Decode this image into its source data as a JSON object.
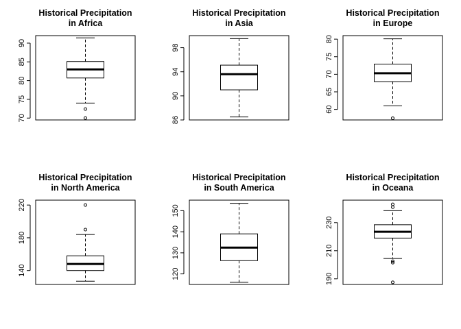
{
  "chart_data": [
    {
      "type": "boxplot",
      "title": [
        "Historical Precipitation",
        "in Africa"
      ],
      "xlabel": "",
      "ylabel": "",
      "ylim": [
        69.5,
        92
      ],
      "yticks": [
        70,
        75,
        80,
        85,
        90
      ],
      "box": {
        "lower_whisker": 74,
        "q1": 80.7,
        "median": 83,
        "q3": 85.1,
        "upper_whisker": 91.4
      },
      "outliers": [
        72.4,
        70
      ]
    },
    {
      "type": "boxplot",
      "title": [
        "Historical Precipitation",
        "in Asia"
      ],
      "xlabel": "",
      "ylabel": "",
      "ylim": [
        86,
        100
      ],
      "yticks": [
        86,
        90,
        94,
        98
      ],
      "box": {
        "lower_whisker": 86.5,
        "q1": 91,
        "median": 93.6,
        "q3": 95.1,
        "upper_whisker": 99.5
      },
      "outliers": []
    },
    {
      "type": "boxplot",
      "title": [
        "Historical Precipitation",
        "in Europe"
      ],
      "xlabel": "",
      "ylabel": "",
      "ylim": [
        57,
        81
      ],
      "yticks": [
        60,
        65,
        70,
        75,
        80
      ],
      "box": {
        "lower_whisker": 61,
        "q1": 67.9,
        "median": 70.3,
        "q3": 72.9,
        "upper_whisker": 80.1
      },
      "outliers": [
        57.5
      ]
    },
    {
      "type": "boxplot",
      "title": [
        "Historical Precipitation",
        "in North America"
      ],
      "xlabel": "",
      "ylabel": "",
      "ylim": [
        123,
        226
      ],
      "yticks": [
        140,
        180,
        220
      ],
      "box": {
        "lower_whisker": 127,
        "q1": 140,
        "median": 148,
        "q3": 158,
        "upper_whisker": 184
      },
      "outliers": [
        190,
        220
      ]
    },
    {
      "type": "boxplot",
      "title": [
        "Historical Precipitation",
        "in South America"
      ],
      "xlabel": "",
      "ylabel": "",
      "ylim": [
        115,
        155
      ],
      "yticks": [
        120,
        130,
        140,
        150
      ],
      "box": {
        "lower_whisker": 116,
        "q1": 126.3,
        "median": 132.5,
        "q3": 139,
        "upper_whisker": 153.5
      },
      "outliers": []
    },
    {
      "type": "boxplot",
      "title": [
        "Historical Precipitation",
        "in Oceana"
      ],
      "xlabel": "",
      "ylabel": "",
      "ylim": [
        186,
        246
      ],
      "yticks": [
        190,
        210,
        230
      ],
      "box": {
        "lower_whisker": 204.5,
        "q1": 219,
        "median": 223.5,
        "q3": 228.5,
        "upper_whisker": 238.5
      },
      "outliers": [
        243,
        241,
        202.5,
        201.5,
        187.5
      ]
    }
  ]
}
